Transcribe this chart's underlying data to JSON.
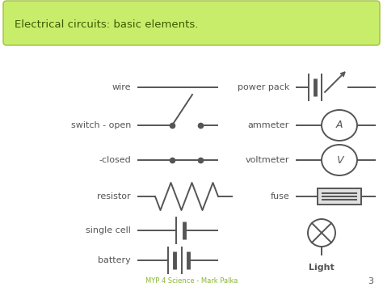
{
  "title": "Electrical circuits: basic elements.",
  "title_bg_color": "#c8ed6a",
  "title_border_color": "#a0c040",
  "bg_color": "#ffffff",
  "text_color": "#555555",
  "symbol_color": "#555555",
  "footer_text": "MYP 4 Science - Mark Palka",
  "footer_color": "#8ab830",
  "page_number": "3",
  "symbol_lw": 1.4,
  "dot_ms": 4.5,
  "figsize": [
    4.74,
    3.55
  ],
  "dpi": 100
}
